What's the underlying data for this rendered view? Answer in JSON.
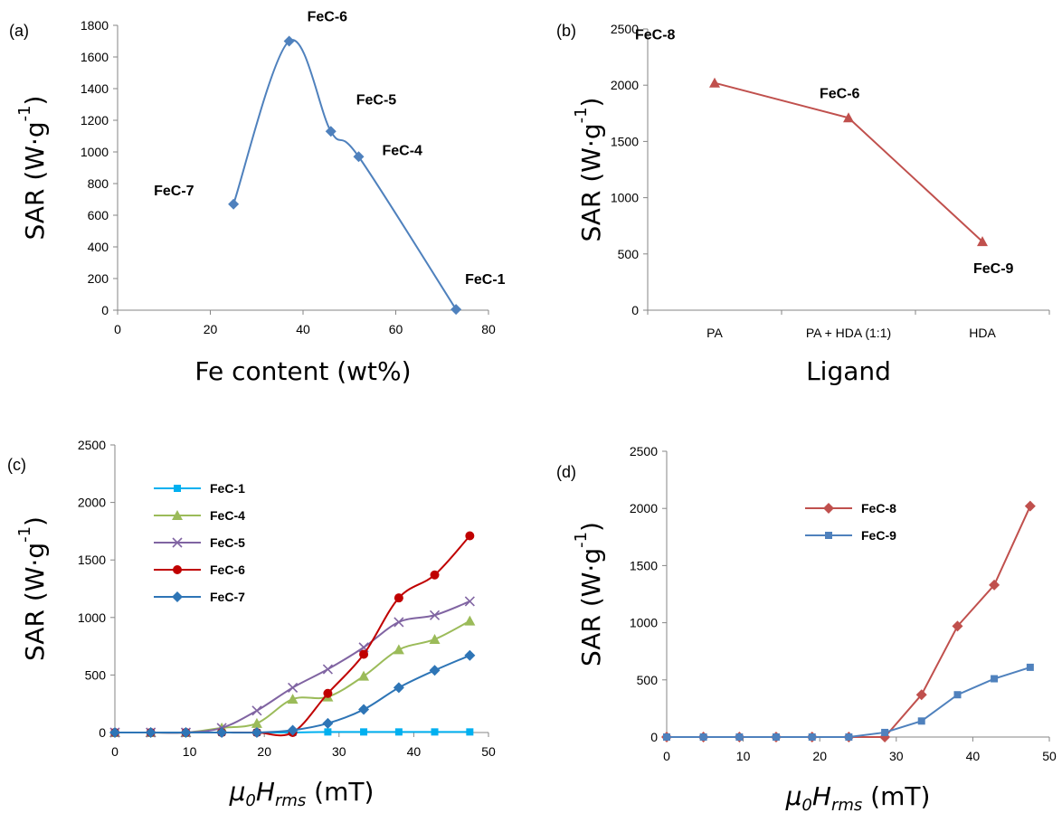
{
  "chart_data": [
    {
      "panel": "a",
      "panel_label": "(a)",
      "type": "scatter",
      "xlabel": "Fe content (wt%)",
      "ylabel": "SAR (W·g⁻¹)",
      "xlim": [
        0,
        80
      ],
      "ylim": [
        0,
        1800
      ],
      "xticks": [
        0,
        20,
        40,
        60,
        80
      ],
      "yticks": [
        0,
        200,
        400,
        600,
        800,
        1000,
        1200,
        1400,
        1600,
        1800
      ],
      "series": [
        {
          "color": "#4F81BD",
          "marker": "diamond",
          "smooth": true,
          "points": [
            {
              "x": 25,
              "y": 670,
              "label": "FeC-7"
            },
            {
              "x": 37,
              "y": 1700,
              "label": "FeC-6"
            },
            {
              "x": 46,
              "y": 1130,
              "label": "FeC-5"
            },
            {
              "x": 52,
              "y": 970,
              "label": "FeC-4"
            },
            {
              "x": 73,
              "y": 5,
              "label": "FeC-1"
            }
          ]
        }
      ]
    },
    {
      "panel": "b",
      "panel_label": "(b)",
      "type": "line",
      "xlabel": "Ligand",
      "ylabel": "SAR (W·g⁻¹)",
      "categories": [
        "PA",
        "PA + HDA (1:1)",
        "HDA"
      ],
      "ylim": [
        0,
        2500
      ],
      "yticks": [
        0,
        500,
        1000,
        1500,
        2000,
        2500
      ],
      "series": [
        {
          "color": "#C0504D",
          "marker": "triangle",
          "values": [
            2020,
            1710,
            610
          ],
          "point_labels": [
            "FeC-8",
            "FeC-6",
            "FeC-9"
          ]
        }
      ]
    },
    {
      "panel": "c",
      "panel_label": "(c)",
      "type": "line",
      "xlabel_main": "μ",
      "xlabel_sub0": "0",
      "xlabel_main2": "H",
      "xlabel_sub2": "rms",
      "xlabel_unit": " (mT)",
      "ylabel": "SAR (W·g⁻¹)",
      "xlim": [
        0,
        50
      ],
      "ylim": [
        0,
        2500
      ],
      "xticks": [
        0,
        10,
        20,
        30,
        40,
        50
      ],
      "yticks": [
        0,
        500,
        1000,
        1500,
        2000,
        2500
      ],
      "x": [
        0,
        4.8,
        9.5,
        14.3,
        19,
        23.8,
        28.5,
        33.3,
        38,
        42.8,
        47.5
      ],
      "series": [
        {
          "name": "FeC-1",
          "color": "#00B0F0",
          "marker": "square",
          "values": [
            0,
            0,
            0,
            0,
            0,
            0,
            5,
            5,
            5,
            5,
            5
          ]
        },
        {
          "name": "FeC-4",
          "color": "#9BBB59",
          "marker": "triangle",
          "values": [
            0,
            0,
            0,
            40,
            80,
            290,
            310,
            490,
            720,
            810,
            970
          ]
        },
        {
          "name": "FeC-5",
          "color": "#8064A2",
          "marker": "x",
          "values": [
            0,
            0,
            0,
            40,
            190,
            390,
            550,
            740,
            960,
            1020,
            1140
          ]
        },
        {
          "name": "FeC-6",
          "color": "#C00000",
          "marker": "circle",
          "values": [
            0,
            0,
            0,
            0,
            0,
            0,
            340,
            680,
            1170,
            1370,
            1710
          ]
        },
        {
          "name": "FeC-7",
          "color": "#2E75B6",
          "marker": "diamond",
          "values": [
            0,
            0,
            0,
            0,
            0,
            20,
            80,
            200,
            390,
            540,
            670
          ]
        }
      ]
    },
    {
      "panel": "d",
      "panel_label": "(d)",
      "type": "line",
      "xlabel_main": "μ",
      "xlabel_sub0": "0",
      "xlabel_main2": "H",
      "xlabel_sub2": "rms",
      "xlabel_unit": " (mT)",
      "ylabel": "SAR (W·g⁻¹)",
      "xlim": [
        0,
        50
      ],
      "ylim": [
        0,
        2500
      ],
      "xticks": [
        0,
        10,
        20,
        30,
        40,
        50
      ],
      "yticks": [
        0,
        500,
        1000,
        1500,
        2000,
        2500
      ],
      "x": [
        0,
        4.8,
        9.5,
        14.3,
        19,
        23.8,
        28.5,
        33.3,
        38,
        42.8,
        47.5
      ],
      "series": [
        {
          "name": "FeC-8",
          "color": "#C0504D",
          "marker": "diamond",
          "values": [
            0,
            0,
            0,
            0,
            0,
            0,
            0,
            370,
            970,
            1330,
            2020
          ]
        },
        {
          "name": "FeC-9",
          "color": "#4F81BD",
          "marker": "square",
          "values": [
            0,
            0,
            0,
            0,
            0,
            0,
            40,
            140,
            370,
            510,
            610
          ]
        }
      ]
    }
  ]
}
